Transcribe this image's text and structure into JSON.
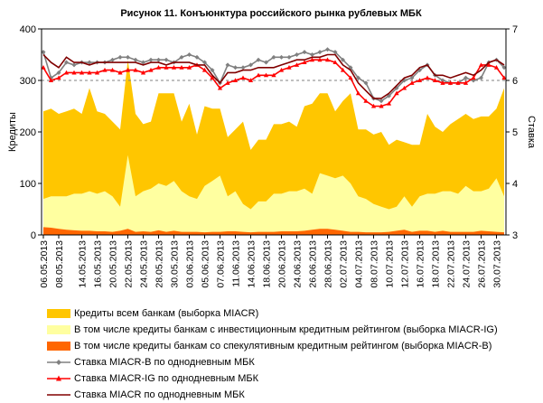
{
  "chart_data": {
    "type": "area",
    "title": "Рисунок 11. Конъюнктура российского рынка рублевых МБК",
    "ylabel": "Кредиты",
    "y2label": "Ставка",
    "ylim": [
      0,
      400
    ],
    "y2lim": [
      3,
      7
    ],
    "yticks": [
      "0",
      "100",
      "200",
      "300",
      "400"
    ],
    "y2ticks": [
      "3",
      "4",
      "5",
      "6",
      "7"
    ],
    "grid": "dashed horizontal at 300",
    "legend_position": "bottom",
    "x": [
      "06.05.2013",
      "07.05.2013",
      "08.05.2013",
      "09.05.2013",
      "13.05.2013",
      "14.05.2013",
      "15.05.2013",
      "16.05.2013",
      "17.05.2013",
      "20.05.2013",
      "21.05.2013",
      "22.05.2013",
      "23.05.2013",
      "24.05.2013",
      "27.05.2013",
      "28.05.2013",
      "29.05.2013",
      "30.05.2013",
      "31.05.2013",
      "03.06.2013",
      "04.06.2013",
      "05.06.2013",
      "06.06.2013",
      "07.06.2013",
      "10.06.2013",
      "11.06.2013",
      "13.06.2013",
      "14.06.2013",
      "17.06.2013",
      "18.06.2013",
      "19.06.2013",
      "20.06.2013",
      "21.06.2013",
      "24.06.2013",
      "25.06.2013",
      "26.06.2013",
      "27.06.2013",
      "28.06.2013",
      "01.07.2013",
      "02.07.2013",
      "03.07.2013",
      "04.07.2013",
      "05.07.2013",
      "08.07.2013",
      "09.07.2013",
      "10.07.2013",
      "11.07.2013",
      "12.07.2013",
      "15.07.2013",
      "16.07.2013",
      "17.07.2013",
      "18.07.2013",
      "19.07.2013",
      "22.07.2013",
      "23.07.2013",
      "24.07.2013",
      "25.07.2013",
      "26.07.2013",
      "29.07.2013",
      "30.07.2013",
      "31.07.2013"
    ],
    "x_tick_labels": [
      "06.05.2013",
      "08.05.2013",
      "14.05.2013",
      "16.05.2013",
      "20.05.2013",
      "22.05.2013",
      "24.05.2013",
      "28.05.2013",
      "30.05.2013",
      "03.06.2013",
      "05.06.2013",
      "07.06.2013",
      "11.06.2013",
      "14.06.2013",
      "18.06.2013",
      "20.06.2013",
      "24.06.2013",
      "26.06.2013",
      "28.06.2013",
      "02.07.2013",
      "04.07.2013",
      "08.07.2013",
      "10.07.2013",
      "12.07.2013",
      "16.07.2013",
      "18.07.2013",
      "22.07.2013",
      "24.07.2013",
      "26.07.2013",
      "30.07.2013"
    ],
    "series": [
      {
        "name": "Кредиты всем банкам (выборка MIACR)",
        "type": "area",
        "axis": "left",
        "color": "#FFC600",
        "values": [
          240,
          245,
          235,
          240,
          245,
          235,
          285,
          240,
          235,
          220,
          205,
          340,
          235,
          215,
          220,
          275,
          275,
          275,
          220,
          255,
          195,
          250,
          245,
          245,
          190,
          205,
          220,
          165,
          185,
          185,
          215,
          215,
          220,
          210,
          250,
          255,
          275,
          275,
          240,
          260,
          275,
          205,
          205,
          195,
          200,
          175,
          185,
          180,
          175,
          175,
          235,
          210,
          200,
          215,
          225,
          235,
          225,
          230,
          230,
          245,
          285
        ]
      },
      {
        "name": "В том числе кредиты банкам с инвестиционным кредитным рейтингом (выборка MIACR-IG)",
        "type": "area",
        "axis": "left",
        "color": "#FFFFA0",
        "values": [
          70,
          75,
          75,
          75,
          80,
          80,
          85,
          80,
          85,
          75,
          55,
          155,
          75,
          85,
          90,
          100,
          95,
          105,
          85,
          75,
          70,
          95,
          105,
          115,
          75,
          85,
          60,
          50,
          65,
          65,
          80,
          80,
          85,
          85,
          90,
          80,
          120,
          115,
          110,
          115,
          100,
          75,
          70,
          60,
          55,
          50,
          55,
          75,
          55,
          75,
          80,
          80,
          85,
          85,
          80,
          95,
          85,
          85,
          90,
          110,
          75
        ]
      },
      {
        "name": "В том числе кредиты банкам со спекулятивным кредитным рейтингом (выборка MIACR-B)",
        "type": "area",
        "axis": "left",
        "color": "#FF6600",
        "values": [
          15,
          14,
          12,
          10,
          9,
          8,
          8,
          7,
          7,
          6,
          8,
          12,
          6,
          7,
          6,
          9,
          6,
          8,
          6,
          6,
          6,
          5,
          6,
          6,
          7,
          7,
          6,
          5,
          6,
          6,
          6,
          7,
          7,
          7,
          8,
          10,
          12,
          12,
          10,
          8,
          6,
          6,
          5,
          5,
          5,
          6,
          8,
          10,
          6,
          8,
          8,
          6,
          8,
          6,
          6,
          6,
          6,
          8,
          7,
          6,
          5
        ]
      },
      {
        "name": "Ставка MIACR-B по однодневным МБК",
        "type": "line",
        "axis": "right",
        "color": "#808080",
        "marker": "diamond",
        "values": [
          6.55,
          6.05,
          6.15,
          6.35,
          6.3,
          6.35,
          6.35,
          6.35,
          6.35,
          6.4,
          6.45,
          6.45,
          6.4,
          6.35,
          6.4,
          6.4,
          6.4,
          6.35,
          6.45,
          6.5,
          6.45,
          6.35,
          6.2,
          5.95,
          6.3,
          6.25,
          6.25,
          6.3,
          6.4,
          6.35,
          6.45,
          6.45,
          6.45,
          6.5,
          6.55,
          6.5,
          6.55,
          6.6,
          6.55,
          6.4,
          6.25,
          6.05,
          5.95,
          5.65,
          5.6,
          5.7,
          5.85,
          6.0,
          6.05,
          6.2,
          6.3,
          6.1,
          6.0,
          5.95,
          5.95,
          6.05,
          6.0,
          6.05,
          6.35,
          6.4,
          6.25
        ]
      },
      {
        "name": "Ставка MIACR-IG по однодневным МБК",
        "type": "line",
        "axis": "right",
        "color": "#FF0000",
        "marker": "triangle",
        "values": [
          6.25,
          6.0,
          6.05,
          6.15,
          6.15,
          6.15,
          6.15,
          6.15,
          6.2,
          6.2,
          6.15,
          6.2,
          6.2,
          6.15,
          6.2,
          6.25,
          6.25,
          6.25,
          6.25,
          6.25,
          6.3,
          6.2,
          6.05,
          5.85,
          5.95,
          6.0,
          6.05,
          6.0,
          6.1,
          6.1,
          6.1,
          6.2,
          6.25,
          6.3,
          6.35,
          6.4,
          6.4,
          6.4,
          6.35,
          6.2,
          6.05,
          5.75,
          5.6,
          5.5,
          5.5,
          5.55,
          5.75,
          5.85,
          5.95,
          6.0,
          6.05,
          6.0,
          5.95,
          5.95,
          5.95,
          5.95,
          6.05,
          6.3,
          6.3,
          6.25,
          6.05
        ]
      },
      {
        "name": "Ставка MIACR по однодневным МБК",
        "type": "line",
        "axis": "right",
        "color": "#800000",
        "marker": "none",
        "values": [
          6.5,
          6.35,
          6.25,
          6.45,
          6.35,
          6.35,
          6.3,
          6.35,
          6.35,
          6.35,
          6.35,
          6.35,
          6.35,
          6.3,
          6.35,
          6.35,
          6.3,
          6.35,
          6.35,
          6.35,
          6.3,
          6.3,
          6.1,
          5.95,
          6.15,
          6.15,
          6.2,
          6.2,
          6.25,
          6.25,
          6.25,
          6.3,
          6.35,
          6.4,
          6.4,
          6.45,
          6.45,
          6.5,
          6.5,
          6.3,
          6.2,
          5.95,
          5.8,
          5.65,
          5.65,
          5.75,
          5.9,
          6.05,
          6.1,
          6.25,
          6.3,
          6.1,
          6.1,
          6.05,
          6.1,
          6.15,
          6.1,
          6.2,
          6.35,
          6.4,
          6.3
        ]
      }
    ]
  }
}
